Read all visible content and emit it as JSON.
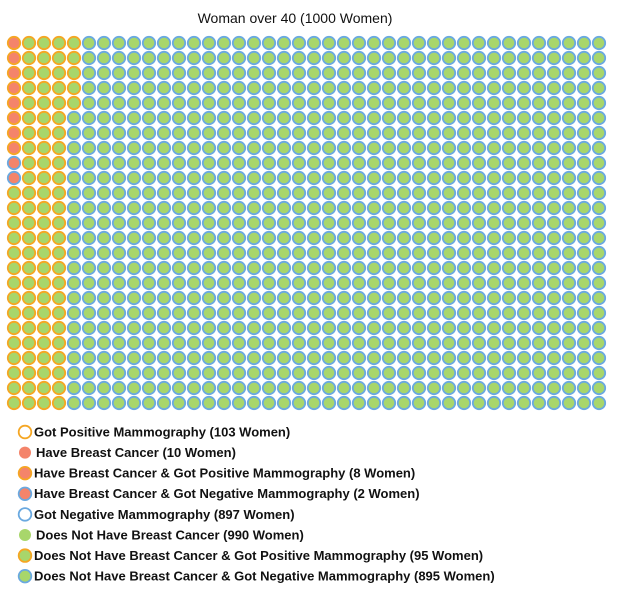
{
  "chart_data": {
    "type": "waffle",
    "title": "Woman over 40 (1000 Women)",
    "total": 1000,
    "grid": {
      "rows": 25,
      "columns": 40,
      "fill_order": "column-major"
    },
    "colors": {
      "positive": "#f5a623",
      "negative": "#6aa9e0",
      "cancer": "#f4846a",
      "no_cancer": "#a8d66b"
    },
    "categories": [
      {
        "key": "cancer_pos",
        "count": 8,
        "fill": "cancer",
        "stroke": "positive"
      },
      {
        "key": "cancer_neg",
        "count": 2,
        "fill": "cancer",
        "stroke": "negative"
      },
      {
        "key": "nocancer_pos",
        "count": 95,
        "fill": "no_cancer",
        "stroke": "positive"
      },
      {
        "key": "nocancer_neg",
        "count": 895,
        "fill": "no_cancer",
        "stroke": "negative"
      }
    ],
    "legend": [
      {
        "label": "Got Positive Mammography (103 Women)",
        "fill": null,
        "stroke": "positive"
      },
      {
        "label": "Have Breast Cancer (10 Women)",
        "fill": "cancer",
        "stroke": null
      },
      {
        "label": "Have Breast Cancer & Got Positive Mammography (8 Women)",
        "fill": "cancer",
        "stroke": "positive"
      },
      {
        "label": "Have Breast Cancer & Got Negative Mammography (2 Women)",
        "fill": "cancer",
        "stroke": "negative"
      },
      {
        "label": "Got Negative Mammography (897 Women)",
        "fill": null,
        "stroke": "negative"
      },
      {
        "label": "Does Not Have Breast Cancer (990 Women)",
        "fill": "no_cancer",
        "stroke": null
      },
      {
        "label": "Does Not Have Breast Cancer & Got Positive Mammography (95 Women)",
        "fill": "no_cancer",
        "stroke": "positive"
      },
      {
        "label": "Does Not Have Breast Cancer & Got Negative Mammography (895 Women)",
        "fill": "no_cancer",
        "stroke": "negative"
      }
    ]
  }
}
